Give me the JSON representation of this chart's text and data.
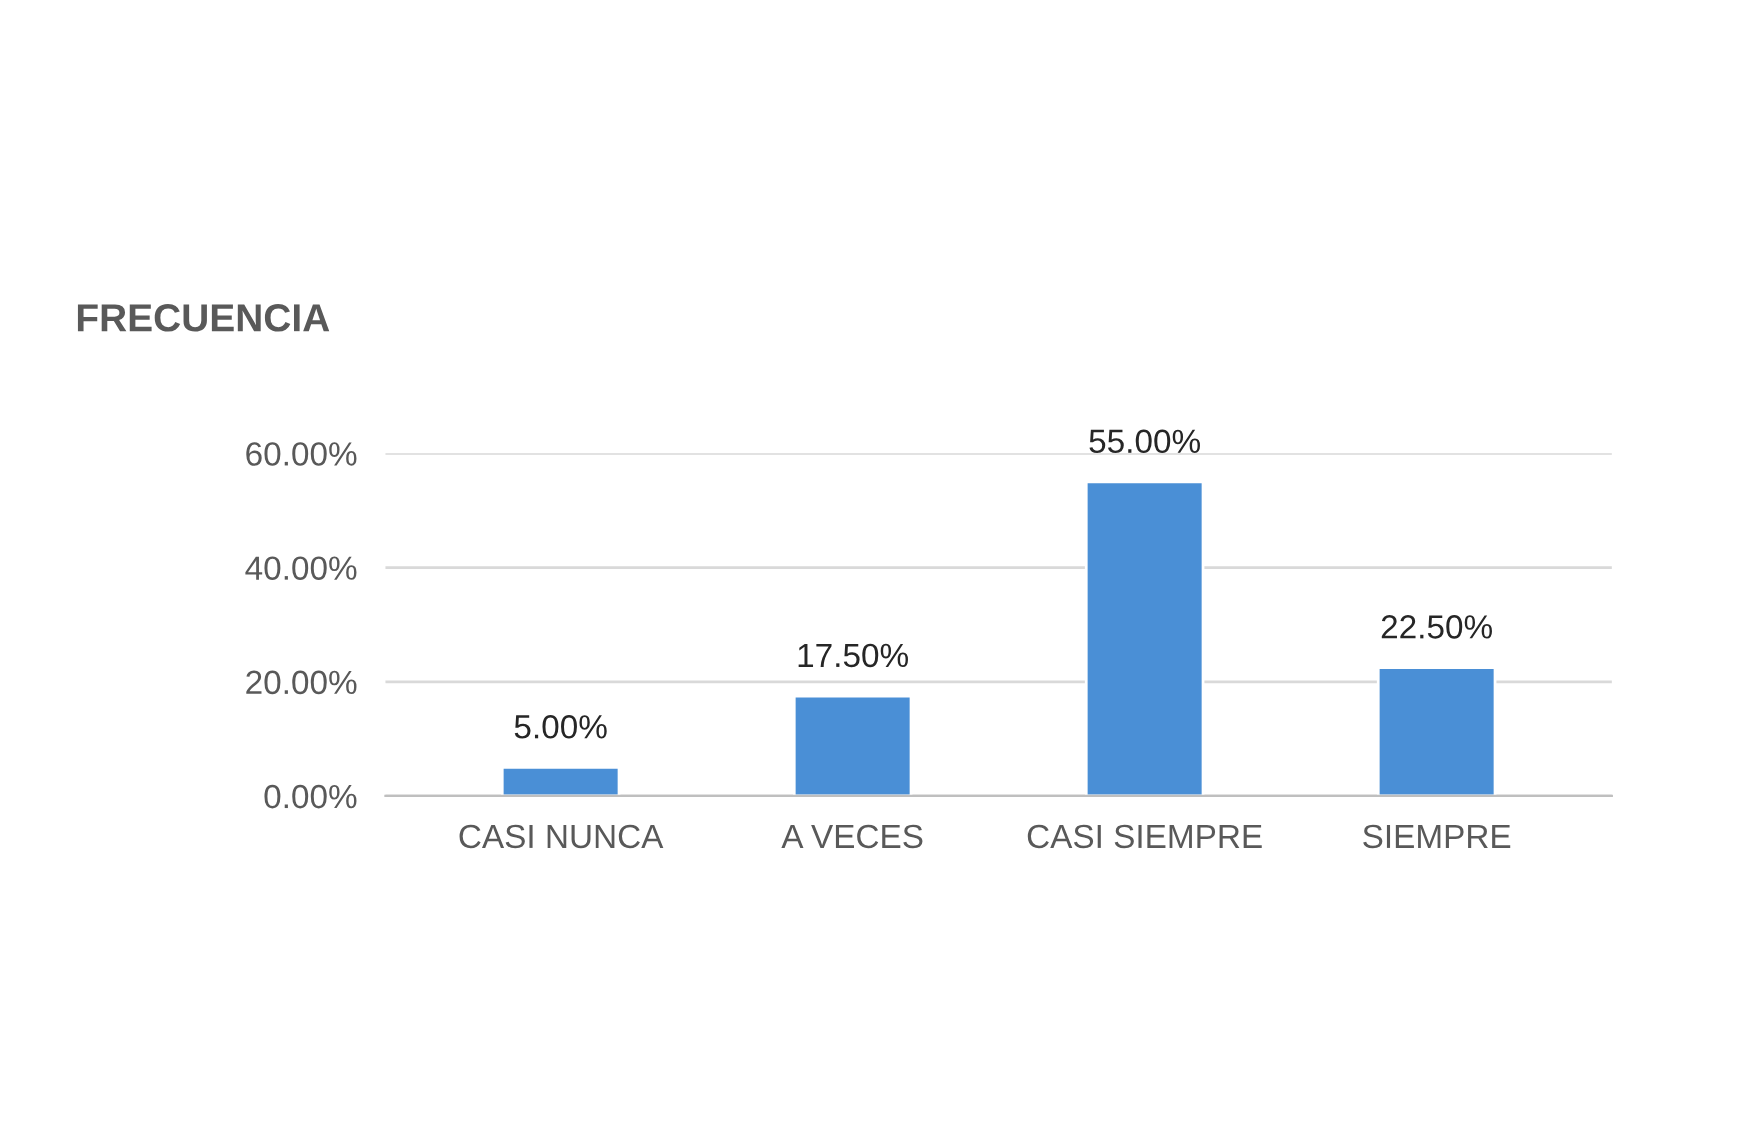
{
  "chart_data": {
    "type": "bar",
    "title": "FRECUENCIA",
    "categories": [
      "CASI NUNCA",
      "A VECES",
      "CASI SIEMPRE",
      "SIEMPRE"
    ],
    "values": [
      5,
      17.5,
      55,
      22.5
    ],
    "value_labels": [
      "5.00%",
      "17.50%",
      "55.00%",
      "22.50%"
    ],
    "color": "#4a8fd6",
    "ylim": [
      0,
      60
    ],
    "yticks": [
      {
        "value": 0,
        "label": "0.00%"
      },
      {
        "value": 20,
        "label": "20.00%"
      },
      {
        "value": 40,
        "label": "40.00%"
      },
      {
        "value": 60,
        "label": "60.00%"
      }
    ],
    "grid": "y",
    "legend": false
  }
}
